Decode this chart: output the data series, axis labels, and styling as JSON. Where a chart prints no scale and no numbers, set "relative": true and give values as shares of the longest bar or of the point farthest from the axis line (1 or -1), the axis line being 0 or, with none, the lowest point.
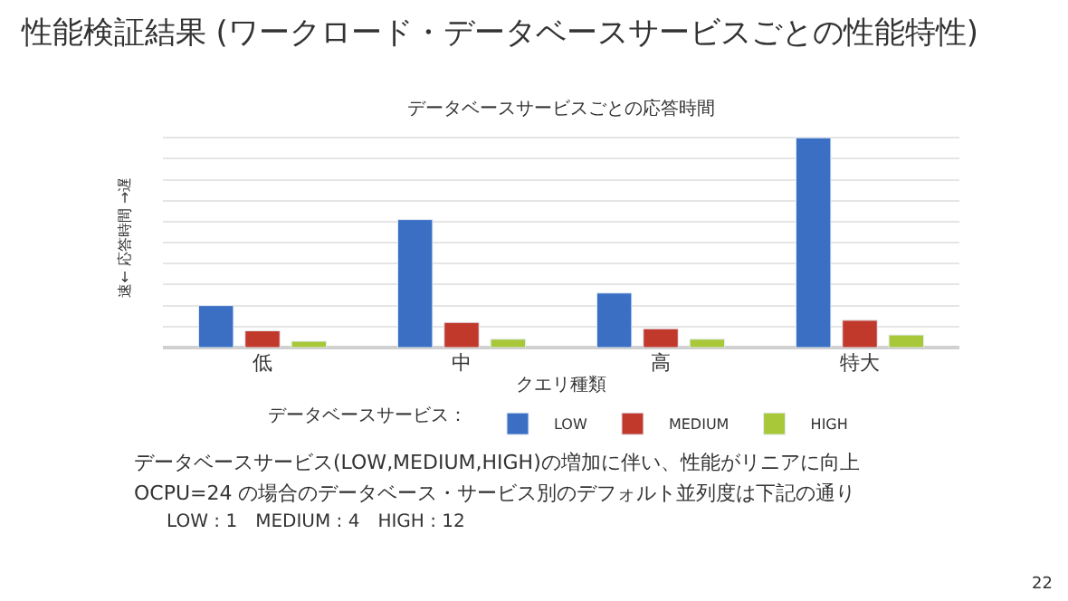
{
  "chart_data": {
    "type": "bar",
    "title": "性能検証結果 (ワークロード・データベースサービスごとの性能特性)",
    "subtitle": "データベースサービスごとの応答時間",
    "xlabel": "クエリ種類",
    "ylabel": "速← 応答時間 →遅",
    "legend_title": "データベースサービス：",
    "categories": [
      "低",
      "中",
      "高",
      "特大"
    ],
    "relative": true,
    "series": [
      {
        "name": "LOW",
        "color": "#3a6fc4",
        "values": [
          0.2,
          0.61,
          0.26,
          1
        ]
      },
      {
        "name": "MEDIUM",
        "color": "#c0392b",
        "values": [
          0.08,
          0.12,
          0.09,
          0.13
        ]
      },
      {
        "name": "HIGH",
        "color": "#a8c83a",
        "values": [
          0.03,
          0.04,
          0.04,
          0.06
        ]
      }
    ],
    "grid": "y",
    "legend": "bottom",
    "annotations": [
      "データベースサービス(LOW,MEDIUM,HIGH)の増加に伴い、性能がリニアに向上",
      "OCPU=24 の場合のデータベース・サービス別のデフォルト並列度は下記の通り",
      "LOW : 1　MEDIUM : 4　HIGH : 12",
      "22"
    ]
  }
}
